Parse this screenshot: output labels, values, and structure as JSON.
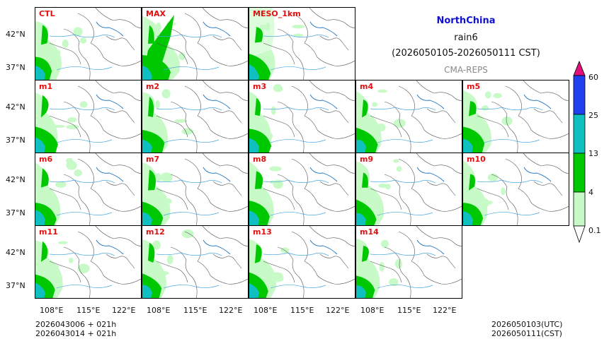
{
  "header": {
    "region": "NorthChina",
    "variable": "rain6",
    "period": "(2026050105-2026050111 CST)",
    "model": "CMA-REPS"
  },
  "panels": [
    "CTL",
    "MAX",
    "MESO_1km",
    "m1",
    "m2",
    "m3",
    "m4",
    "m5",
    "m6",
    "m7",
    "m8",
    "m9",
    "m10",
    "m11",
    "m12",
    "m13",
    "m14"
  ],
  "lat_ticks": [
    "42°N",
    "37°N"
  ],
  "lon_ticks": [
    "108°E",
    "115°E",
    "122°E"
  ],
  "colorbar": {
    "levels": [
      "0.1",
      "4",
      "13",
      "25",
      "60"
    ],
    "colors": [
      "#c8fac8",
      "#00c800",
      "#10c0c0",
      "#2040f0",
      "#e0107a"
    ]
  },
  "footer": {
    "init1": "2026043006  +  021h",
    "init2": "2026043014  +  021h",
    "utc": "2026050103(UTC)",
    "cst": "2026050111(CST)"
  }
}
